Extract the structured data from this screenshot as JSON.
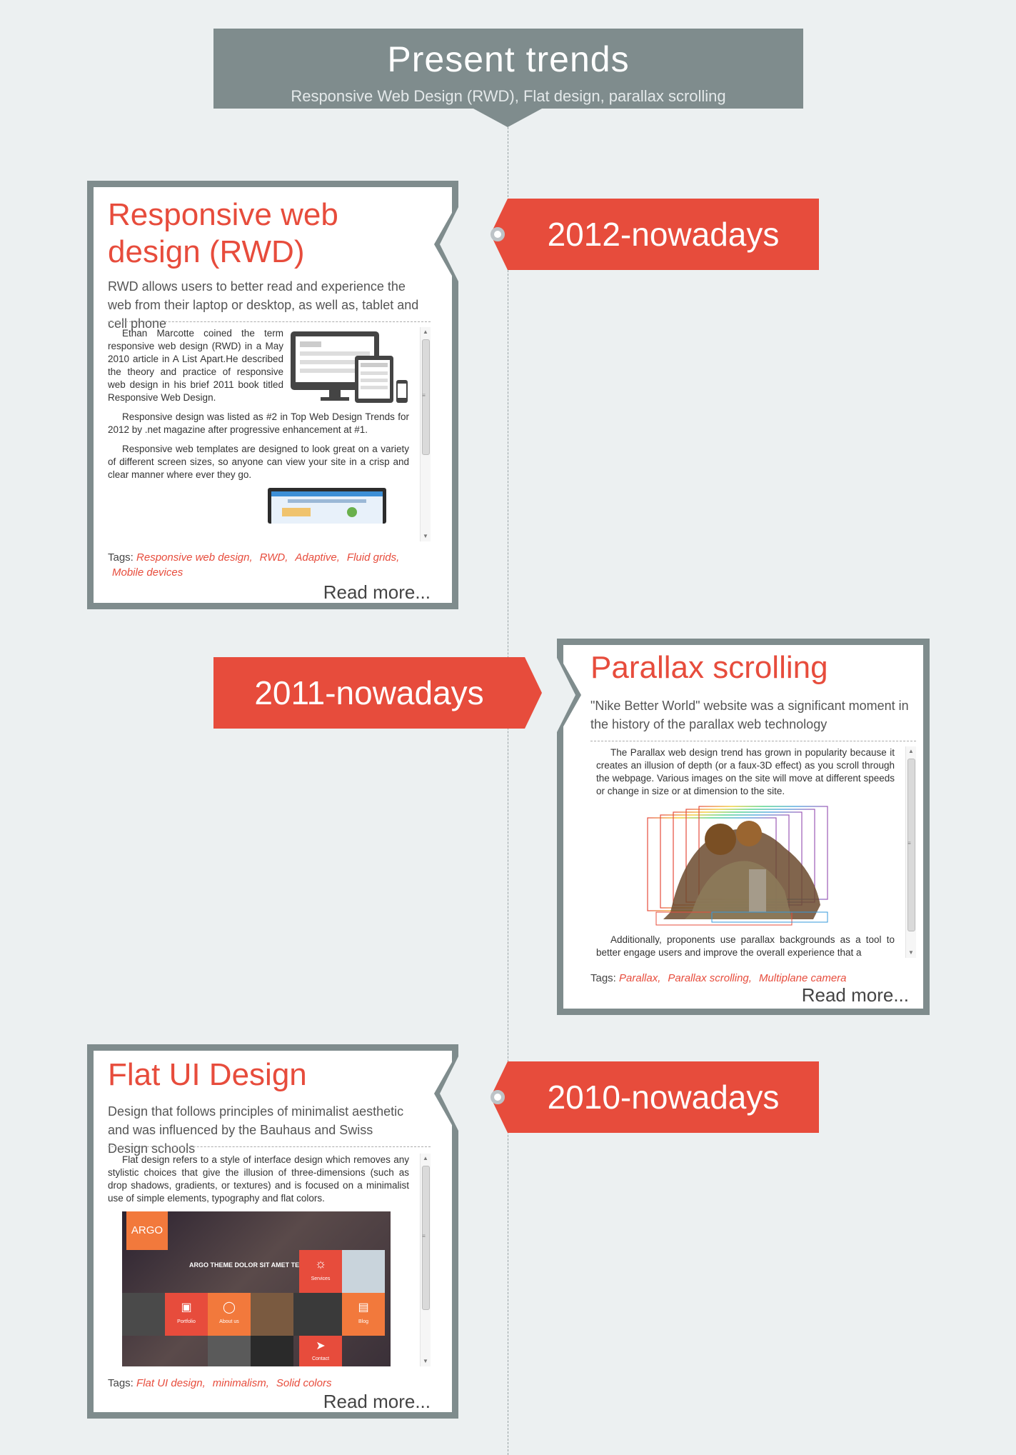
{
  "header": {
    "title": "Present trends",
    "subtitle": "Responsive Web Design (RWD), Flat design, parallax scrolling"
  },
  "entries": [
    {
      "date": "2012-nowadays",
      "title": "Responsive web design (RWD)",
      "lead": "RWD allows users to better read and experience the web from their laptop or desktop, as well as, tablet and cell phone",
      "paragraphs": [
        "Ethan Marcotte coined the term responsive web design (RWD) in a May 2010 article in A List Apart.He described the theory and practice of responsive web design in his brief 2011 book titled Responsive Web Design.",
        "Responsive design was listed as #2 in Top Web Design Trends for 2012 by .net magazine after progressive enhancement at #1.",
        "Responsive web templates are designed to look great on a variety of different screen sizes, so anyone can view your site in a crisp and clear manner where ever they go."
      ],
      "tags_label": "Tags:",
      "tags": [
        "Responsive web design,",
        "RWD,",
        "Adaptive,",
        "Fluid grids,",
        "Mobile devices"
      ],
      "read_more": "Read more..."
    },
    {
      "date": "2011-nowadays",
      "title": "Parallax scrolling",
      "lead": "\"Nike Better World\" website was a significant moment in the history of the parallax web technology",
      "paragraphs": [
        "The Parallax web design trend has grown in popularity because it creates an illusion of depth (or a faux-3D effect) as you scroll through the webpage. Various images on the site will move at different speeds or change in size or at dimension to the site.",
        "Additionally, proponents use parallax backgrounds as a tool to better engage users and improve the overall experience that a"
      ],
      "tags_label": "Tags:",
      "tags": [
        "Parallax,",
        "Parallax scrolling,",
        "Multiplane camera"
      ],
      "read_more": "Read more..."
    },
    {
      "date": "2010-nowadays",
      "title": "Flat UI Design",
      "lead": "Design that follows principles of minimalist aesthetic and was influenced by the Bauhaus and Swiss Design schools",
      "paragraphs": [
        "Flat design refers to a style of interface design which removes any stylistic choices that give the illusion of three-dimensions (such as drop shadows, gradients, or textures) and is focused on a minimalist use of simple elements, typography and flat colors."
      ],
      "tags_label": "Tags:",
      "tags": [
        "Flat UI design,",
        "minimalism,",
        "Solid colors"
      ],
      "read_more": "Read more...",
      "screenshot": {
        "logo": "ARGO",
        "headline": "ARGO THEME DOLOR SIT AMET TELASDE",
        "tiles": [
          "Services",
          "Portfolio",
          "About us",
          "Blog",
          "Contact"
        ]
      }
    }
  ],
  "colors": {
    "accent": "#e74c3c",
    "frame": "#7f8c8d",
    "background": "#ecf0f1"
  }
}
